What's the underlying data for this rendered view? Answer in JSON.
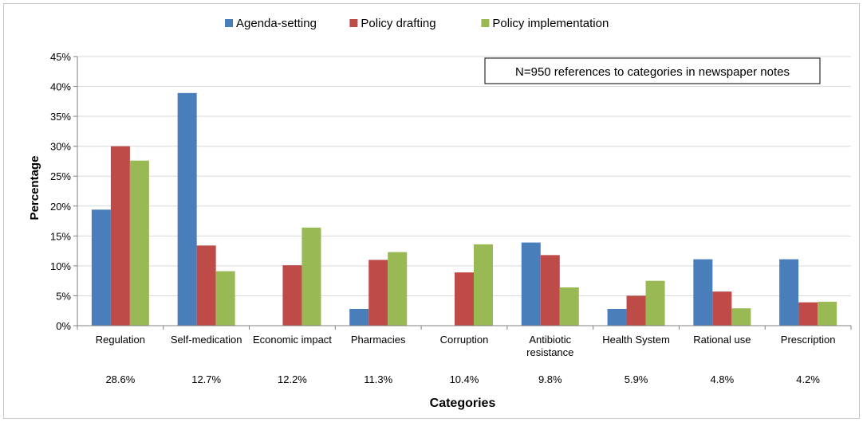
{
  "chart_data": {
    "type": "bar",
    "categories": [
      "Regulation",
      "Self-medication",
      "Economic impact",
      "Pharmacies",
      "Corruption",
      [
        "Antibiotic",
        "resistance"
      ],
      "Health System",
      "Rational use",
      "Prescription"
    ],
    "category_percentages": [
      "28.6%",
      "12.7%",
      "12.2%",
      "11.3%",
      "10.4%",
      "9.8%",
      "5.9%",
      "4.8%",
      "4.2%"
    ],
    "series": [
      {
        "name": "Agenda-setting",
        "color": "#4a7ebb",
        "values": [
          19.4,
          38.9,
          0,
          2.8,
          0,
          13.9,
          2.8,
          11.1,
          11.1
        ]
      },
      {
        "name": "Policy drafting",
        "color": "#be4b48",
        "values": [
          30.0,
          13.4,
          10.1,
          11.0,
          8.9,
          11.8,
          5.0,
          5.7,
          3.9
        ]
      },
      {
        "name": "Policy implementation",
        "color": "#98b954",
        "values": [
          27.6,
          9.1,
          16.4,
          12.3,
          13.6,
          6.4,
          7.5,
          2.9,
          4.0
        ]
      }
    ],
    "ylim": [
      0,
      45
    ],
    "yticks": [
      0,
      5,
      10,
      15,
      20,
      25,
      30,
      35,
      40,
      45
    ],
    "ytick_suffix": "%",
    "xlabel": "Categories",
    "ylabel": "Percentage",
    "annotation": "N=950 references  to categories in newspaper notes",
    "legend_position": "top"
  }
}
